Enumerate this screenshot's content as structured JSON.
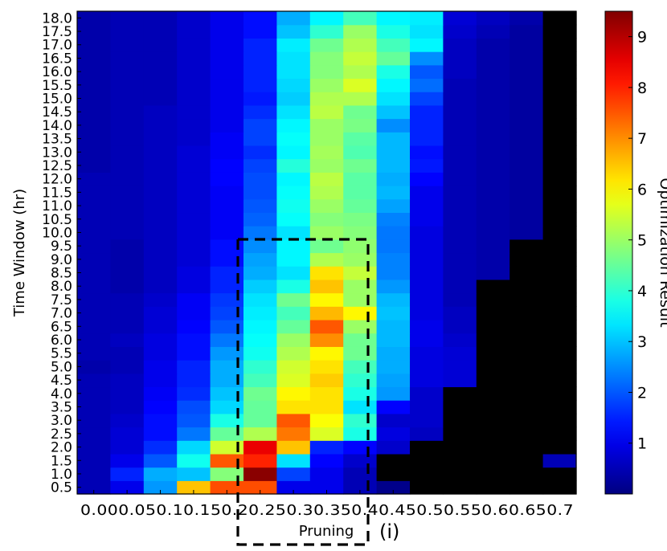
{
  "chart_data": {
    "type": "heatmap",
    "title": "",
    "xlabel": "Pruning",
    "ylabel": "Time Window (hr)",
    "panel_label": "(i)",
    "colorbar_label": "Optimization Result",
    "colorbar_ticks": [
      1,
      2,
      3,
      4,
      5,
      6,
      7,
      8,
      9
    ],
    "value_range": [
      0,
      9.5
    ],
    "colormap": "jet",
    "x_ticks": [
      "0.00",
      "0.05",
      "0.1",
      "0.15",
      "0.2",
      "0.25",
      "0.3",
      "0.35",
      "0.4",
      "0.45",
      "0.5",
      "0.55",
      "0.6",
      "0.65",
      "0.7"
    ],
    "x_tick_text": "0.000.050.10.150.20.250.30.350.40.450.50.550.60.650.7",
    "y_ticks": [
      "0.5",
      "1.0",
      "1.5",
      "2.0",
      "2.5",
      "3.0",
      "3.5",
      "4.0",
      "4.5",
      "5.0",
      "5.5",
      "6.0",
      "6.5",
      "7.0",
      "7.5",
      "8.0",
      "8.5",
      "9.0",
      "9.5",
      "10.0",
      "10.5",
      "11.0",
      "11.5",
      "12.0",
      "12.5",
      "13.0",
      "13.5",
      "14.0",
      "14.5",
      "15.0",
      "15.5",
      "16.0",
      "16.5",
      "17.0",
      "17.5",
      "18.0"
    ],
    "masked_color": "#000000",
    "grid_note": "rows correspond to y_ticks from 0.5 (bottom) to 18.0 (top); columns to x_ticks; null = black (no result)",
    "values": [
      [
        0.5,
        1.0,
        2.6,
        6.5,
        7.6,
        7.6,
        1.0,
        1.0,
        0.5,
        0.1,
        null,
        null,
        null,
        null,
        null
      ],
      [
        0.5,
        1.5,
        2.8,
        3.0,
        4.8,
        9.4,
        1.8,
        1.0,
        0.5,
        null,
        null,
        null,
        null,
        null,
        null
      ],
      [
        0.5,
        1.0,
        2.0,
        3.7,
        7.5,
        8.0,
        3.3,
        1.2,
        0.7,
        null,
        null,
        null,
        null,
        null,
        0.5
      ],
      [
        0.5,
        0.8,
        1.6,
        3.2,
        5.5,
        8.5,
        6.5,
        1.5,
        1.2,
        0.7,
        null,
        null,
        null,
        null,
        null
      ],
      [
        0.5,
        0.8,
        1.3,
        2.3,
        4.5,
        5.2,
        7.2,
        5.6,
        3.8,
        0.9,
        0.6,
        null,
        null,
        null,
        null
      ],
      [
        0.5,
        0.7,
        1.3,
        2.0,
        3.8,
        4.5,
        7.5,
        5.9,
        4.0,
        0.7,
        0.7,
        null,
        null,
        null,
        null
      ],
      [
        0.5,
        0.6,
        1.2,
        1.9,
        3.2,
        4.5,
        6.2,
        6.2,
        3.3,
        1.2,
        0.7,
        null,
        null,
        null,
        null
      ],
      [
        0.5,
        0.6,
        1.1,
        1.6,
        3.0,
        4.6,
        6.0,
        6.2,
        3.8,
        2.6,
        0.7,
        null,
        null,
        null,
        null
      ],
      [
        0.5,
        0.6,
        1.0,
        1.5,
        2.8,
        4.2,
        5.6,
        6.4,
        4.0,
        2.7,
        0.9,
        0.8,
        null,
        null,
        null
      ],
      [
        0.4,
        0.5,
        1.0,
        1.5,
        2.8,
        4.0,
        5.5,
        6.2,
        4.2,
        2.8,
        0.9,
        0.8,
        null,
        null,
        null
      ],
      [
        0.5,
        0.5,
        0.9,
        1.3,
        2.6,
        3.7,
        5.2,
        6.0,
        4.6,
        2.8,
        0.9,
        0.8,
        null,
        null,
        null
      ],
      [
        0.5,
        0.6,
        0.9,
        1.3,
        2.3,
        3.6,
        5.0,
        7.0,
        4.6,
        2.9,
        1.0,
        0.7,
        null,
        null,
        null
      ],
      [
        0.5,
        0.5,
        0.8,
        1.2,
        2.0,
        3.5,
        4.5,
        7.5,
        5.0,
        2.9,
        1.0,
        0.6,
        null,
        null,
        null
      ],
      [
        0.5,
        0.5,
        0.8,
        1.1,
        1.8,
        3.4,
        4.2,
        6.6,
        6.0,
        3.0,
        0.9,
        0.6,
        null,
        null,
        null
      ],
      [
        0.5,
        0.5,
        0.7,
        1.1,
        1.7,
        3.3,
        4.6,
        6.0,
        5.0,
        2.9,
        0.9,
        0.5,
        null,
        null,
        null
      ],
      [
        0.5,
        0.4,
        0.6,
        0.9,
        1.5,
        3.1,
        3.8,
        6.5,
        5.0,
        2.6,
        0.9,
        0.5,
        null,
        null,
        null
      ],
      [
        0.5,
        0.4,
        0.6,
        0.9,
        1.5,
        2.8,
        3.3,
        6.2,
        5.4,
        2.4,
        0.9,
        0.5,
        0.4,
        null,
        null
      ],
      [
        0.5,
        0.4,
        0.6,
        0.8,
        1.3,
        2.7,
        3.5,
        5.2,
        5.0,
        2.4,
        0.9,
        0.5,
        0.4,
        null,
        null
      ],
      [
        0.5,
        0.4,
        0.6,
        0.8,
        1.3,
        2.5,
        3.5,
        4.6,
        4.9,
        2.3,
        0.9,
        0.5,
        0.4,
        null,
        null
      ],
      [
        0.5,
        0.5,
        0.6,
        0.8,
        1.1,
        2.3,
        3.3,
        5.0,
        4.8,
        2.3,
        0.9,
        0.5,
        0.4,
        0.3,
        null
      ],
      [
        0.5,
        0.5,
        0.6,
        0.8,
        1.1,
        2.1,
        3.6,
        4.8,
        4.7,
        2.4,
        1.0,
        0.5,
        0.4,
        0.3,
        null
      ],
      [
        0.5,
        0.5,
        0.6,
        0.8,
        1.1,
        2.0,
        3.7,
        5.0,
        4.5,
        2.7,
        1.0,
        0.5,
        0.4,
        0.3,
        null
      ],
      [
        0.5,
        0.5,
        0.6,
        0.8,
        1.1,
        1.9,
        3.6,
        5.2,
        4.4,
        2.9,
        1.0,
        0.5,
        0.4,
        0.3,
        null
      ],
      [
        0.5,
        0.5,
        0.6,
        0.8,
        1.2,
        1.9,
        3.5,
        5.3,
        4.4,
        2.8,
        1.2,
        0.5,
        0.4,
        0.3,
        null
      ],
      [
        0.4,
        0.5,
        0.6,
        0.8,
        1.2,
        1.8,
        3.9,
        5.0,
        4.6,
        2.9,
        1.4,
        0.5,
        0.4,
        0.3,
        null
      ],
      [
        0.4,
        0.5,
        0.6,
        0.8,
        1.1,
        1.6,
        3.5,
        5.1,
        4.3,
        2.9,
        1.3,
        0.5,
        0.4,
        0.3,
        null
      ],
      [
        0.4,
        0.5,
        0.6,
        0.7,
        1.1,
        1.8,
        3.6,
        5.0,
        4.4,
        2.9,
        1.5,
        0.5,
        0.4,
        0.3,
        null
      ],
      [
        0.4,
        0.5,
        0.6,
        0.7,
        1.0,
        1.8,
        3.5,
        5.0,
        4.7,
        2.5,
        1.5,
        0.5,
        0.4,
        0.3,
        null
      ],
      [
        0.4,
        0.5,
        0.6,
        0.7,
        1.0,
        1.6,
        3.3,
        5.3,
        4.6,
        3.0,
        1.5,
        0.5,
        0.4,
        0.3,
        null
      ],
      [
        0.4,
        0.5,
        0.5,
        0.7,
        1.0,
        1.4,
        3.1,
        5.2,
        5.2,
        3.3,
        1.8,
        0.5,
        0.4,
        0.3,
        null
      ],
      [
        0.4,
        0.5,
        0.5,
        0.7,
        1.0,
        1.5,
        3.2,
        5.0,
        5.6,
        3.5,
        2.2,
        0.5,
        0.4,
        0.3,
        null
      ],
      [
        0.4,
        0.5,
        0.5,
        0.7,
        1.0,
        1.5,
        3.3,
        4.8,
        5.2,
        3.8,
        2.0,
        0.6,
        0.4,
        0.3,
        null
      ],
      [
        0.4,
        0.5,
        0.5,
        0.7,
        1.0,
        1.5,
        3.3,
        4.8,
        5.4,
        4.5,
        2.5,
        0.6,
        0.4,
        0.3,
        null
      ],
      [
        0.4,
        0.5,
        0.5,
        0.7,
        1.0,
        1.5,
        3.4,
        4.6,
        5.2,
        4.2,
        3.5,
        0.6,
        0.4,
        0.3,
        null
      ],
      [
        0.4,
        0.5,
        0.5,
        0.7,
        1.0,
        1.3,
        3.0,
        4.0,
        5.0,
        3.8,
        3.3,
        0.7,
        0.5,
        0.3,
        null
      ],
      [
        0.4,
        0.5,
        0.5,
        0.7,
        1.0,
        1.3,
        2.8,
        3.5,
        4.2,
        3.5,
        3.4,
        0.8,
        0.6,
        0.4,
        null
      ]
    ]
  }
}
